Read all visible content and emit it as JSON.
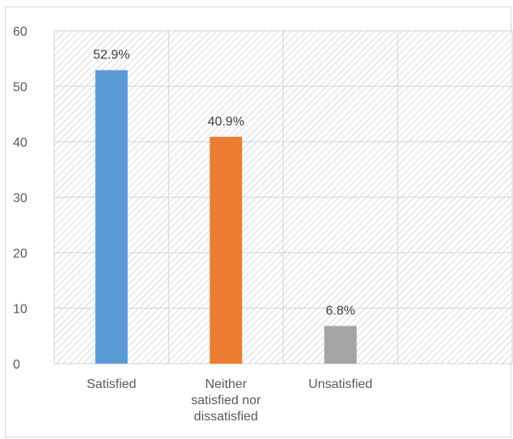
{
  "chart_data": {
    "type": "bar",
    "title": "",
    "xlabel": "",
    "ylabel": "",
    "ylim": [
      0,
      60
    ],
    "yticks": [
      0,
      10,
      20,
      30,
      40,
      50,
      60
    ],
    "grid": true,
    "legend": "none",
    "categories": [
      [
        "Satisfied"
      ],
      [
        "Neither",
        "satisfied nor",
        "dissatisfied"
      ],
      [
        "Unsatisfied"
      ],
      [
        ""
      ]
    ],
    "values": [
      52.9,
      40.9,
      6.8,
      null
    ],
    "data_labels": [
      "52.9%",
      "40.9%",
      "6.8%",
      ""
    ],
    "colors": [
      "#5b9bd5",
      "#ed7d31",
      "#a5a5a5",
      "#ffffff"
    ],
    "background_pattern": "diagonal-hatch"
  }
}
